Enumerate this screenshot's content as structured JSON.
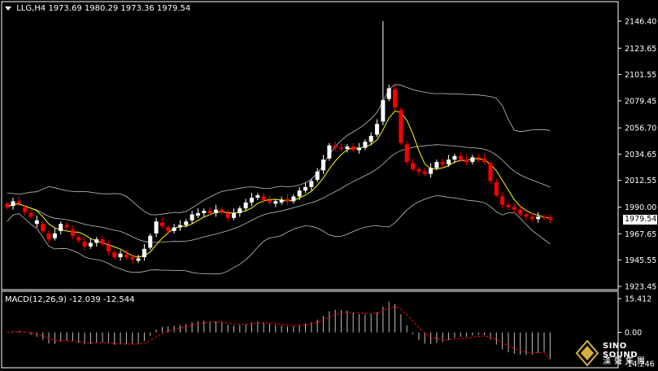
{
  "header": {
    "symbol": "LLG,H4",
    "ohlc": "1973.69 1980.29 1973.36 1979.54"
  },
  "macd_header": {
    "label": "MACD(12,26,9)",
    "values": "-12.039 -12.544"
  },
  "last_price_label": "1979.54",
  "logo": {
    "line1": "SINO SOUND",
    "line2": "漢聲集團"
  },
  "colors": {
    "background": "#000000",
    "up_candle": "#ffffff",
    "down_candle": "#ff0000",
    "bollinger": "#c0c0c0",
    "moving_average": "#ffff00",
    "macd_histogram": "#c0c0c0",
    "macd_signal": "#ff0000",
    "axis": "#ffffff"
  },
  "chart_data": [
    {
      "type": "candlestick",
      "indicators": [
        "Bollinger Bands",
        "Moving Average"
      ],
      "ylim": [
        1923.45,
        2150
      ],
      "y_ticks": [
        "2146.40",
        "2123.65",
        "2101.55",
        "2079.45",
        "2056.70",
        "2034.65",
        "2012.55",
        "1990.00",
        "1967.65",
        "1945.55",
        "1923.45"
      ],
      "last_price": 1979.54,
      "close": [
        1990,
        1995,
        1993,
        1986,
        1982,
        1979,
        1970,
        1963,
        1968,
        1976,
        1973,
        1966,
        1962,
        1957,
        1960,
        1963,
        1959,
        1953,
        1948,
        1951,
        1948,
        1946,
        1947,
        1955,
        1966,
        1978,
        1974,
        1970,
        1973,
        1975,
        1978,
        1984,
        1985,
        1987,
        1985,
        1988,
        1986,
        1981,
        1985,
        1989,
        1994,
        1998,
        2000,
        1996,
        1994,
        1995,
        1996,
        1995,
        1999,
        2004,
        2007,
        2012,
        2020,
        2030,
        2042,
        2040,
        2039,
        2041,
        2038,
        2040,
        2045,
        2050,
        2060,
        2080,
        2090,
        2074,
        2044,
        2028,
        2022,
        2020,
        2018,
        2023,
        2028,
        2026,
        2030,
        2033,
        2030,
        2028,
        2032,
        2031,
        2028,
        2012,
        2000,
        1992,
        1990,
        1988,
        1984,
        1982,
        1980,
        1982,
        1981,
        1979.54
      ],
      "open_offsets": [
        -3,
        4,
        -2,
        -4,
        -3,
        3,
        -6,
        -5,
        4,
        6,
        -2,
        -5,
        -3,
        -4,
        3,
        3,
        -4,
        -5,
        -4,
        3,
        -2,
        -2,
        2,
        7,
        10,
        10,
        -3,
        -3,
        3,
        2,
        3,
        5,
        2,
        2,
        -2,
        3,
        -2,
        -4,
        4,
        4,
        5,
        4,
        2,
        -3,
        -2,
        2,
        2,
        -2,
        4,
        5,
        3,
        5,
        7,
        9,
        11,
        -2,
        -1,
        2,
        -3,
        2,
        5,
        5,
        9,
        18,
        9,
        -15,
        -28,
        -15,
        -5,
        -2,
        -2,
        5,
        5,
        -2,
        4,
        3,
        -3,
        -2,
        4,
        -1,
        -3,
        -15,
        -11,
        -7,
        -2,
        -2,
        -4,
        -2,
        -2,
        2,
        -1,
        -2
      ],
      "notable_high": 2146.4
    },
    {
      "type": "bar",
      "name": "MACD(12,26,9)",
      "ylim": [
        -14.246,
        15.412
      ],
      "y_ticks": [
        "15.412",
        "0.00",
        "-14.246"
      ],
      "histogram_last": -12.039,
      "signal_last": -12.544
    }
  ]
}
